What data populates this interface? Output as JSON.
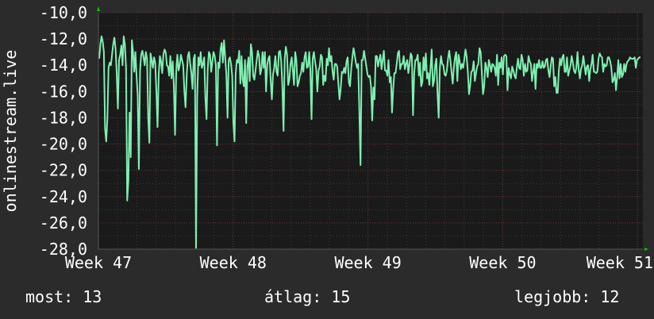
{
  "chart_data": {
    "type": "line",
    "ylabel": "onlinestream.live",
    "ylim": [
      -28,
      -10
    ],
    "y_ticks": [
      "-10,0",
      "-12,0",
      "-14,0",
      "-16,0",
      "-18,0",
      "-20,0",
      "-22,0",
      "-24,0",
      "-26,0",
      "-28,0"
    ],
    "y_tick_values": [
      -10,
      -12,
      -14,
      -16,
      -18,
      -20,
      -22,
      -24,
      -26,
      -28
    ],
    "x_ticks": [
      "Week 47",
      "Week 48",
      "Week 49",
      "Week 50",
      "Week 51"
    ],
    "xlim_weeks": [
      47,
      51.04
    ],
    "grid": true,
    "series": [
      {
        "color": "#7fefb2",
        "values": [
          -13.5,
          -12.4,
          -11.8,
          -12.2,
          -13.0,
          -18.8,
          -19.8,
          -18.0,
          -14.2,
          -13.8,
          -14.0,
          -13.2,
          -12.4,
          -11.9,
          -12.7,
          -14.6,
          -17.3,
          -13.6,
          -13.2,
          -12.5,
          -14.0,
          -11.8,
          -12.4,
          -14.2,
          -24.3,
          -22.8,
          -17.6,
          -21.0,
          -12.1,
          -13.0,
          -14.5,
          -13.0,
          -14.8,
          -16.3,
          -21.9,
          -14.4,
          -13.2,
          -12.9,
          -13.4,
          -14.0,
          -13.0,
          -13.5,
          -18.0,
          -19.9,
          -13.1,
          -13.6,
          -14.2,
          -13.4,
          -13.8,
          -16.0,
          -18.7,
          -14.7,
          -13.3,
          -13.7,
          -14.6,
          -13.2,
          -12.8,
          -13.0,
          -14.0,
          -14.1,
          -14.8,
          -13.3,
          -15.0,
          -13.7,
          -15.6,
          -19.3,
          -14.5,
          -13.2,
          -14.4,
          -14.0,
          -13.2,
          -13.6,
          -14.0,
          -16.0,
          -17.2,
          -14.8,
          -13.3,
          -13.0,
          -13.9,
          -14.6,
          -15.8,
          -13.5,
          -13.2,
          -27.9,
          -16.3,
          -13.4,
          -14.0,
          -13.0,
          -14.2,
          -13.9,
          -13.4,
          -16.5,
          -18.1,
          -14.3,
          -13.0,
          -13.2,
          -14.5,
          -13.7,
          -13.0,
          -13.3,
          -14.0,
          -20.1,
          -13.8,
          -14.2,
          -12.8,
          -12.3,
          -13.8,
          -12.1,
          -13.4,
          -14.7,
          -18.0,
          -13.6,
          -13.4,
          -13.9,
          -14.8,
          -18.4,
          -19.8,
          -14.6,
          -13.6,
          -13.8,
          -12.9,
          -15.4,
          -13.3,
          -15.1,
          -15.6,
          -13.6,
          -18.4,
          -14.1,
          -13.4,
          -15.2,
          -12.4,
          -13.0,
          -14.8,
          -15.1,
          -14.4,
          -13.6,
          -12.9,
          -13.3,
          -14.7,
          -14.3,
          -13.0,
          -14.2,
          -13.0,
          -16.0,
          -14.0,
          -13.5,
          -13.3,
          -15.2,
          -16.6,
          -14.7,
          -14.2,
          -13.3,
          -14.5,
          -14.8,
          -13.0,
          -12.9,
          -13.7,
          -15.6,
          -19.0,
          -13.5,
          -12.6,
          -13.2,
          -15.5,
          -15.1,
          -13.9,
          -13.4,
          -14.4,
          -15.5,
          -13.0,
          -13.6,
          -15.6,
          -15.3,
          -14.8,
          -14.6,
          -13.8,
          -14.5,
          -13.4,
          -13.0,
          -14.2,
          -14.1,
          -13.0,
          -14.4,
          -18.1,
          -13.5,
          -13.0,
          -13.7,
          -14.3,
          -16.0,
          -14.4,
          -14.1,
          -13.2,
          -13.4,
          -15.5,
          -14.8,
          -15.2,
          -13.5,
          -14.0,
          -12.7,
          -13.7,
          -13.3,
          -14.5,
          -15.1,
          -13.9,
          -13.9,
          -14.1,
          -15.4,
          -16.6,
          -15.8,
          -14.5,
          -14.6,
          -14.2,
          -14.6,
          -13.7,
          -13.4,
          -15.3,
          -15.6,
          -14.3,
          -13.4,
          -12.7,
          -13.2,
          -13.8,
          -14.2,
          -13.9,
          -17.6,
          -21.6,
          -13.6,
          -13.6,
          -12.9,
          -13.5,
          -14.1,
          -14.7,
          -14.9,
          -14.8,
          -15.6,
          -18.2,
          -15.7,
          -16.6,
          -13.3,
          -13.3,
          -14.1,
          -13.6,
          -13.2,
          -14.3,
          -13.6,
          -12.9,
          -14.4,
          -14.4,
          -14.8,
          -13.6,
          -15.3,
          -14.9,
          -17.6,
          -15.8,
          -14.6,
          -14.6,
          -13.9,
          -13.1,
          -12.9,
          -14.3,
          -13.9,
          -13.9,
          -13.3,
          -14.3,
          -13.9,
          -13.6,
          -14.6,
          -13.9,
          -13.1,
          -13.3,
          -17.8,
          -14.6,
          -13.6,
          -13.6,
          -13.2,
          -14.8,
          -13.8,
          -15.6,
          -15.3,
          -13.4,
          -14.4,
          -13.1,
          -15.0,
          -14.6,
          -15.5,
          -14.2,
          -12.8,
          -15.6,
          -15.2,
          -14.0,
          -13.5,
          -16.2,
          -18.0,
          -14.2,
          -13.3,
          -13.9,
          -14.0,
          -14.7,
          -14.8,
          -14.4,
          -13.5,
          -12.9,
          -13.6,
          -14.5,
          -15.4,
          -14.2,
          -13.4,
          -13.0,
          -15.2,
          -13.2,
          -13.7,
          -14.3,
          -13.9,
          -14.2,
          -13.5,
          -12.8,
          -13.4,
          -14.5,
          -16.2,
          -15.5,
          -14.5,
          -14.4,
          -13.7,
          -15.2,
          -14.6,
          -14.1,
          -13.9,
          -12.7,
          -13.0,
          -14.6,
          -16.2,
          -15.6,
          -13.8,
          -14.2,
          -14.9,
          -13.6,
          -14.0,
          -14.5,
          -13.9,
          -14.0,
          -14.2,
          -14.8,
          -13.2,
          -15.5,
          -13.8,
          -14.2,
          -13.4,
          -14.7,
          -13.3,
          -13.2,
          -13.3,
          -15.9,
          -14.2,
          -14.7,
          -15.0,
          -14.1,
          -14.4,
          -14.8,
          -15.0,
          -14.2,
          -13.5,
          -14.2,
          -14.3,
          -13.2,
          -13.6,
          -14.8,
          -13.9,
          -14.5,
          -14.4,
          -13.3,
          -13.7,
          -13.9,
          -15.2,
          -14.5,
          -13.9,
          -15.8,
          -13.9,
          -14.2,
          -13.6,
          -14.2,
          -14.2,
          -13.7,
          -14.2,
          -14.1,
          -13.6,
          -13.5,
          -14.4,
          -14.9,
          -14.1,
          -13.4,
          -13.5,
          -15.6,
          -14.9,
          -16.1,
          -16.1,
          -14.4,
          -13.5,
          -14.0,
          -13.4,
          -13.2,
          -14.5,
          -14.5,
          -13.4,
          -14.8,
          -14.4,
          -14.0,
          -13.3,
          -13.8,
          -14.4,
          -14.6,
          -14.2,
          -13.0,
          -14.3,
          -15.0,
          -14.3,
          -14.0,
          -13.3,
          -14.0,
          -14.7,
          -14.1,
          -14.0,
          -15.2,
          -14.3,
          -13.9,
          -13.2,
          -14.5,
          -14.5,
          -14.6,
          -14.5,
          -13.5,
          -13.1,
          -13.3,
          -13.4,
          -14.5,
          -13.9,
          -14.1,
          -14.0,
          -13.4,
          -13.4,
          -13.7,
          -14.2,
          -15.3,
          -15.1,
          -14.6,
          -15.9,
          -14.9,
          -13.6,
          -15.0,
          -13.9,
          -14.9,
          -14.7,
          -13.9,
          -14.5,
          -13.9,
          -13.7,
          -13.6,
          -13.4,
          -13.5,
          -13.5,
          -13.5,
          -13.4,
          -14.2,
          -13.6,
          -13.5,
          -13.4,
          -13.4
        ]
      }
    ],
    "summary": {
      "now_label": "most:",
      "now_value": "13",
      "avg_label": "átlag:",
      "avg_value": "15",
      "best_label": "legjobb:",
      "best_value": "12"
    }
  }
}
